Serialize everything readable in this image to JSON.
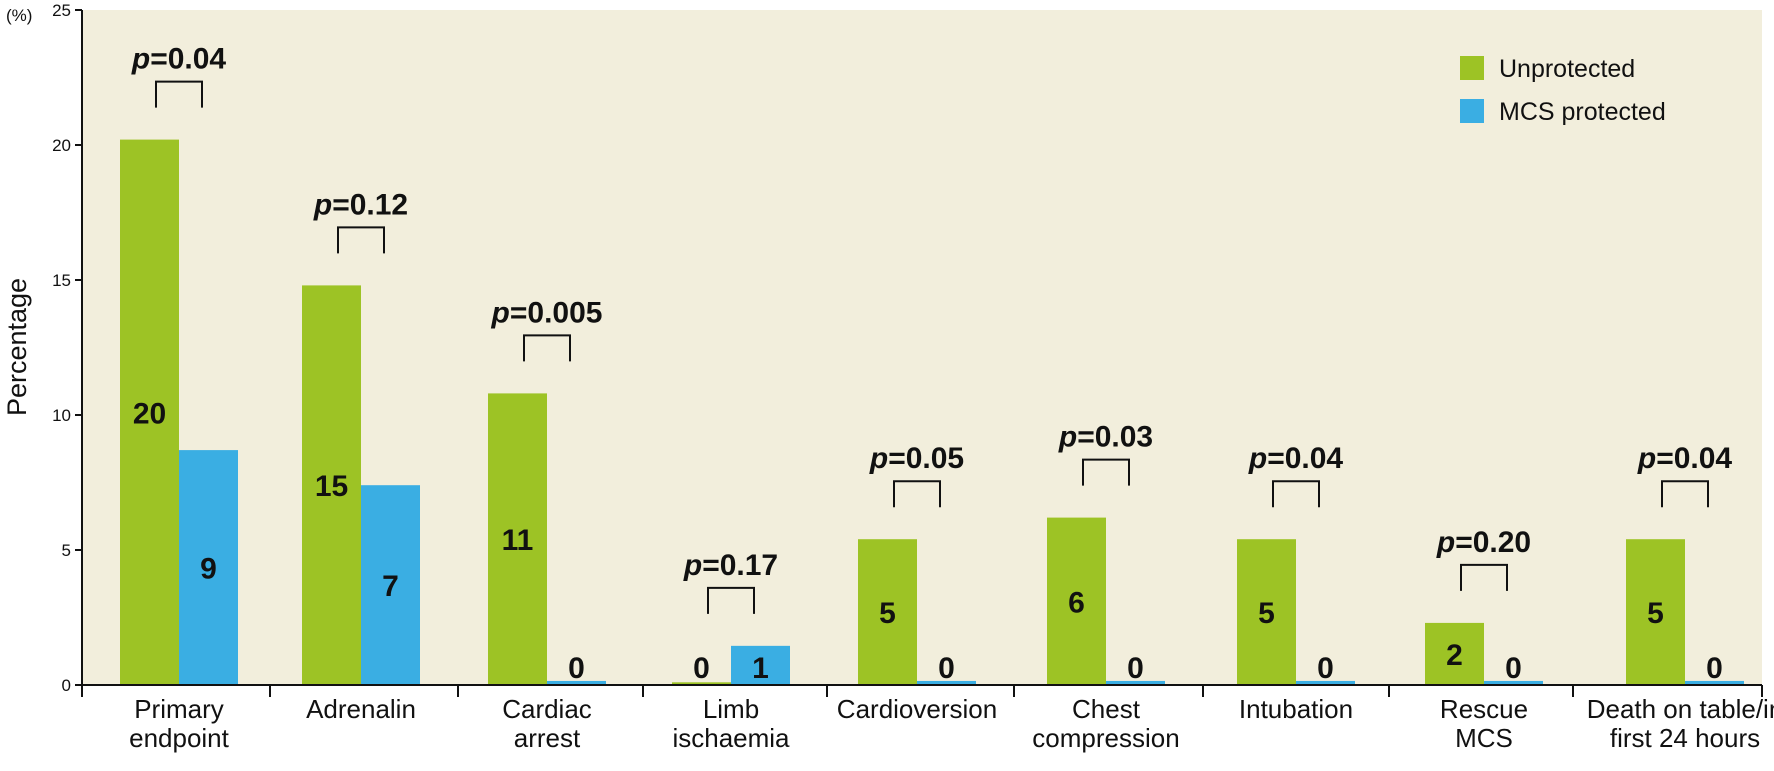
{
  "chart_data": {
    "type": "bar",
    "title": "",
    "ylabel": "Percentage",
    "yunit_label": "(%)",
    "ylim": [
      0,
      25
    ],
    "yticks": [
      0,
      5,
      10,
      15,
      20,
      25
    ],
    "categories": [
      [
        "Primary",
        "endpoint"
      ],
      [
        "Adrenalin"
      ],
      [
        "Cardiac",
        "arrest"
      ],
      [
        "Limb",
        "ischaemia"
      ],
      [
        "Cardioversion"
      ],
      [
        "Chest",
        "compression"
      ],
      [
        "Intubation"
      ],
      [
        "Rescue",
        "MCS"
      ],
      [
        "Death on table/in",
        "first 24 hours"
      ]
    ],
    "series": [
      {
        "name": "Unprotected",
        "color": "#9dc325",
        "values": [
          20.2,
          14.8,
          10.8,
          0.1,
          5.4,
          6.2,
          5.4,
          2.3,
          5.4
        ],
        "labels": [
          "20",
          "15",
          "11",
          "0",
          "5",
          "6",
          "5",
          "2",
          "5"
        ]
      },
      {
        "name": "MCS protected",
        "color": "#3aaee3",
        "values": [
          8.7,
          7.4,
          0.15,
          1.45,
          0.15,
          0.15,
          0.15,
          0.15,
          0.15
        ],
        "labels": [
          "9",
          "7",
          "0",
          "1",
          "0",
          "0",
          "0",
          "0",
          "0"
        ]
      }
    ],
    "p_values": [
      {
        "p": "p",
        "rest": "=0.04"
      },
      {
        "p": "p",
        "rest": "=0.12"
      },
      {
        "p": "p",
        "rest": "=0.005"
      },
      {
        "p": "p",
        "rest": "=0.17"
      },
      {
        "p": "p",
        "rest": "=0.05"
      },
      {
        "p": "p",
        "rest": "=0.03"
      },
      {
        "p": "p",
        "rest": "=0.04"
      },
      {
        "p": "p",
        "rest": "=0.20"
      },
      {
        "p": "p",
        "rest": "=0.04"
      }
    ],
    "legend_position": "top-right",
    "plot_background": "#f2eedc",
    "grid": false
  }
}
